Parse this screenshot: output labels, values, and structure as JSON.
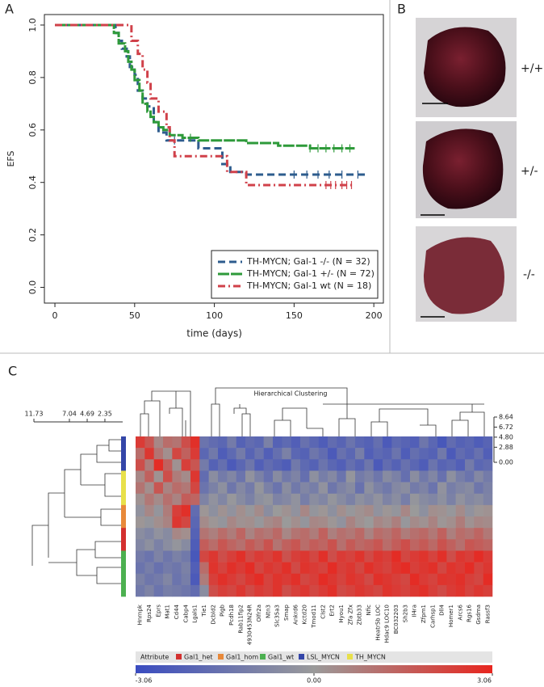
{
  "panel_labels": [
    "A",
    "B",
    "C"
  ],
  "panel_b": {
    "labels": [
      "+/+",
      "+/-",
      "-/-"
    ]
  },
  "chart_data": [
    {
      "type": "line",
      "step": true,
      "xlabel": "time (days)",
      "ylabel": "EFS",
      "xlim": [
        -6.6,
        206
      ],
      "ylim": [
        -0.06,
        1.04
      ],
      "xticks": [
        0,
        50,
        100,
        150,
        200
      ],
      "yticks": [
        {
          "value": 0,
          "label": "0.0"
        },
        {
          "value": 0.2,
          "label": "0.2"
        },
        {
          "value": 0.4,
          "label": "0.4"
        },
        {
          "value": 0.6,
          "label": "0.6"
        },
        {
          "value": 0.8,
          "label": "0.8"
        },
        {
          "value": 1,
          "label": "1.0"
        }
      ],
      "legend": "lower right",
      "series": [
        {
          "name": "TH-MYCN; Gal-1 -/- (N = 32)",
          "color": "#2e5c8e",
          "linestyle": "dashed",
          "x": [
            0,
            38,
            40,
            42,
            45,
            47,
            50,
            52,
            55,
            58,
            62,
            65,
            70,
            90,
            105,
            110,
            120,
            195
          ],
          "values": [
            1,
            0.97,
            0.94,
            0.91,
            0.88,
            0.84,
            0.81,
            0.75,
            0.72,
            0.69,
            0.63,
            0.59,
            0.56,
            0.53,
            0.47,
            0.44,
            0.43,
            0.43
          ],
          "censored": [
            75,
            150,
            158,
            165,
            172,
            180,
            190
          ]
        },
        {
          "name": "TH-MYCN; Gal-1 +/- (N = 72)",
          "color": "#2e9a3a",
          "linestyle": "solid",
          "x": [
            0,
            37,
            40,
            44,
            46,
            48,
            50,
            53,
            55,
            58,
            60,
            62,
            65,
            68,
            72,
            80,
            90,
            120,
            140,
            160,
            188
          ],
          "values": [
            1,
            0.97,
            0.93,
            0.9,
            0.86,
            0.83,
            0.79,
            0.75,
            0.7,
            0.67,
            0.65,
            0.63,
            0.61,
            0.6,
            0.58,
            0.57,
            0.56,
            0.55,
            0.54,
            0.53,
            0.53
          ],
          "censored": [
            85,
            160,
            165,
            170,
            175,
            180,
            185
          ]
        },
        {
          "name": "TH-MYCN; Gal-1 wt (N = 18)",
          "color": "#d0414a",
          "linestyle": "dashdot",
          "x": [
            0,
            48,
            52,
            55,
            58,
            60,
            65,
            70,
            72,
            75,
            108,
            120,
            187
          ],
          "values": [
            1,
            0.94,
            0.89,
            0.83,
            0.78,
            0.72,
            0.67,
            0.61,
            0.56,
            0.5,
            0.44,
            0.39,
            0.39
          ],
          "censored": [
            170,
            173,
            176,
            180,
            183,
            186
          ]
        }
      ]
    },
    {
      "type": "heatmap",
      "title": "Hierarchical Clustering",
      "columns": [
        "Hnrnpk",
        "Rps24",
        "Eprs",
        "Mat1",
        "Cd44",
        "Cabp4",
        "Lgals1",
        "Tie1",
        "Dcbld2",
        "Pigb",
        "Pcdh18",
        "Rab11fip2",
        "4930453N24R",
        "Olfr2a",
        "Ntn3",
        "Slc35a3",
        "Smap",
        "Ankrd6",
        "Kctd20",
        "Tmod11",
        "Clst2",
        "Ert2",
        "Hyou1",
        "Zfa Zfx",
        "Zbtb33",
        "Nfic",
        "Heatr5b LOC",
        "Hdac9 LOC10",
        "BC032203",
        "Sh2b3",
        "Il4ra",
        "Zfpm1",
        "Carhsp1",
        "Dll4",
        "Homer1",
        "Arcs6",
        "Rgs16",
        "Gsdma",
        "Rassf3"
      ],
      "rows": [
        [
          2.5,
          1.8,
          0.5,
          1.2,
          1.0,
          2.0,
          2.8,
          -1.5,
          -1.8,
          -2.0,
          -1.2,
          -2.2,
          -1.8,
          -2.0,
          -1.0,
          -2.2,
          -1.9,
          -2.3,
          -1.6,
          -2.0,
          -2.4,
          -1.8,
          -2.1,
          -1.5,
          -2.0,
          -2.2,
          -1.7,
          -2.5,
          -1.9,
          -2.1,
          -2.3,
          -1.4,
          -2.0,
          -2.6,
          -1.8,
          -2.2,
          -2.0,
          -2.4,
          -2.1
        ],
        [
          1.2,
          2.6,
          1.0,
          0.3,
          2.2,
          1.5,
          2.5,
          -2.0,
          -1.3,
          -2.4,
          -1.9,
          -1.2,
          -2.1,
          -1.5,
          -2.3,
          -1.7,
          -1.0,
          -2.0,
          -2.2,
          -1.4,
          -1.8,
          -2.5,
          -1.6,
          -2.0,
          -1.1,
          -2.3,
          -1.9,
          -2.1,
          -1.5,
          -2.4,
          -1.7,
          -2.0,
          -2.2,
          -1.3,
          -2.5,
          -1.8,
          -2.1,
          -1.6,
          -2.3
        ],
        [
          2.0,
          0.8,
          2.9,
          1.5,
          0.2,
          2.4,
          1.8,
          -1.2,
          -2.2,
          -1.7,
          -2.5,
          -2.0,
          -1.4,
          -2.3,
          -1.8,
          -2.1,
          -2.4,
          -1.3,
          -1.9,
          -2.2,
          -1.5,
          -2.0,
          -2.3,
          -1.7,
          -2.1,
          -1.4,
          -2.5,
          -1.8,
          -2.2,
          -1.6,
          -2.0,
          -2.4,
          -1.5,
          -2.1,
          -1.9,
          -2.3,
          -1.2,
          -2.0,
          -1.8
        ],
        [
          0.5,
          1.5,
          0.2,
          2.0,
          0.8,
          0.4,
          2.6,
          -1.8,
          -0.5,
          -1.2,
          -0.8,
          -1.5,
          -0.3,
          -1.0,
          -1.6,
          -0.6,
          -1.3,
          -0.9,
          -1.7,
          -0.4,
          -1.1,
          -0.7,
          -1.5,
          -0.2,
          -1.2,
          -0.9,
          -1.4,
          -0.6,
          -1.0,
          -1.7,
          -0.5,
          -1.3,
          -0.8,
          -1.6,
          -0.4,
          -1.1,
          -1.5,
          -0.7,
          -1.2
        ],
        [
          1.0,
          0.3,
          1.8,
          0.6,
          1.2,
          0.9,
          2.2,
          -1.5,
          -1.0,
          -0.4,
          -1.4,
          -0.7,
          -1.2,
          -0.2,
          -1.0,
          -1.5,
          -0.5,
          -1.3,
          -0.8,
          -1.1,
          -0.3,
          -1.4,
          -0.9,
          -0.6,
          -1.6,
          -0.4,
          -1.0,
          -1.3,
          -0.7,
          -0.5,
          -1.2,
          -0.9,
          -1.5,
          -0.3,
          -1.1,
          -0.8,
          -0.6,
          -1.4,
          -1.0
        ],
        [
          0.2,
          0.9,
          0.4,
          1.1,
          0.6,
          1.6,
          1.4,
          -0.9,
          -0.3,
          -0.8,
          -0.1,
          -0.6,
          -1.0,
          -0.4,
          -0.2,
          -0.9,
          -0.7,
          -0.3,
          -1.1,
          -0.5,
          -0.8,
          -0.2,
          -0.6,
          -1.0,
          -0.4,
          -0.7,
          -0.3,
          -0.9,
          -0.5,
          -1.1,
          -0.2,
          -0.6,
          -0.8,
          -0.4,
          -1.0,
          -0.3,
          -0.7,
          -0.5,
          -0.9
        ],
        [
          -0.3,
          0.5,
          -0.2,
          0.8,
          2.4,
          2.8,
          -1.8,
          0.1,
          -0.4,
          0.2,
          -0.3,
          0.3,
          -0.1,
          0.4,
          -0.5,
          0.0,
          0.2,
          -0.3,
          0.5,
          -0.2,
          0.1,
          -0.4,
          0.3,
          -0.1,
          0.2,
          0.4,
          -0.3,
          0.1,
          -0.2,
          0.5,
          0.0,
          -0.4,
          0.3,
          0.2,
          -0.1,
          0.4,
          -0.3,
          0.1,
          0.2
        ],
        [
          0.1,
          -0.2,
          0.3,
          0.6,
          2.6,
          2.2,
          -2.0,
          0.4,
          0.1,
          -0.2,
          0.5,
          0.2,
          0.3,
          -0.1,
          0.4,
          0.6,
          0.0,
          0.3,
          -0.2,
          0.5,
          0.4,
          0.1,
          -0.3,
          0.6,
          0.2,
          0.0,
          0.5,
          0.3,
          0.7,
          -0.1,
          0.4,
          0.2,
          0.6,
          0.1,
          0.3,
          0.8,
          0.2,
          0.5,
          0.4
        ],
        [
          -0.5,
          -0.8,
          -0.3,
          -0.6,
          0.5,
          0.3,
          -2.2,
          1.0,
          0.7,
          1.2,
          0.8,
          1.4,
          0.6,
          1.1,
          0.9,
          1.3,
          0.5,
          1.0,
          1.2,
          0.8,
          1.5,
          0.7,
          1.1,
          0.9,
          1.3,
          0.6,
          1.2,
          1.0,
          1.4,
          0.8,
          1.1,
          1.3,
          0.9,
          1.5,
          0.7,
          1.2,
          1.0,
          1.4,
          0.9
        ],
        [
          -0.8,
          -0.4,
          -1.0,
          -0.5,
          -0.2,
          -0.6,
          -2.4,
          1.6,
          1.2,
          1.8,
          1.4,
          1.1,
          1.7,
          1.3,
          1.9,
          1.0,
          1.5,
          1.8,
          1.2,
          1.6,
          1.4,
          1.9,
          1.1,
          1.7,
          1.3,
          1.5,
          1.8,
          1.2,
          1.6,
          2.0,
          1.4,
          1.7,
          1.3,
          1.9,
          1.5,
          1.1,
          1.8,
          1.6,
          1.4
        ],
        [
          -1.2,
          -1.5,
          -0.9,
          -1.4,
          -1.0,
          -1.3,
          -2.6,
          2.2,
          2.6,
          2.0,
          2.4,
          2.8,
          2.1,
          2.5,
          2.3,
          2.7,
          1.9,
          2.4,
          2.6,
          2.2,
          2.8,
          2.0,
          2.5,
          2.3,
          2.7,
          2.1,
          2.6,
          2.4,
          2.9,
          2.2,
          2.5,
          2.7,
          2.3,
          2.8,
          2.0,
          2.6,
          2.4,
          2.9,
          2.5
        ],
        [
          -1.5,
          -1.1,
          -1.6,
          -1.2,
          -1.4,
          -1.0,
          -2.3,
          1.2,
          2.7,
          2.3,
          2.8,
          2.5,
          2.9,
          2.2,
          2.6,
          2.4,
          2.8,
          2.1,
          2.7,
          2.5,
          2.3,
          2.9,
          2.4,
          2.6,
          2.2,
          2.8,
          2.5,
          2.3,
          2.7,
          2.9,
          2.4,
          2.6,
          2.8,
          2.2,
          2.7,
          2.5,
          2.9,
          2.3,
          2.6
        ],
        [
          -1.0,
          -1.4,
          -1.2,
          -0.8,
          -1.5,
          -1.1,
          -2.5,
          0.8,
          2.4,
          2.8,
          2.5,
          2.2,
          2.6,
          2.9,
          2.3,
          2.7,
          2.5,
          2.8,
          2.2,
          2.4,
          2.9,
          2.6,
          2.3,
          2.7,
          2.5,
          2.1,
          2.8,
          2.6,
          2.4,
          2.2,
          2.9,
          2.5,
          2.3,
          2.7,
          2.6,
          2.8,
          2.4,
          2.2,
          2.9
        ],
        [
          -1.3,
          -0.9,
          -1.5,
          -1.1,
          -1.2,
          -1.4,
          -1.8,
          -0.5,
          2.0,
          2.4,
          2.2,
          2.6,
          2.1,
          2.5,
          2.3,
          2.7,
          2.0,
          2.4,
          2.6,
          2.2,
          2.5,
          2.8,
          2.1,
          2.3,
          2.6,
          2.4,
          2.2,
          2.7,
          2.5,
          2.3,
          2.6,
          2.8,
          2.4,
          2.1,
          2.5,
          2.7,
          2.3,
          2.6,
          2.4
        ]
      ],
      "row_attributes": [
        "LSL_MYCN",
        "LSL_MYCN",
        "LSL_MYCN",
        "TH_MYCN",
        "TH_MYCN",
        "TH_MYCN",
        "Gal1_hom",
        "Gal1_hom",
        "Gal1_het",
        "Gal1_het",
        "Gal1_wt",
        "Gal1_wt",
        "Gal1_wt",
        "Gal1_wt"
      ],
      "legend": {
        "title": "Attribute",
        "items": [
          {
            "name": "Gal1_het",
            "color": "#d3302f"
          },
          {
            "name": "Gal1_hom",
            "color": "#e8893a"
          },
          {
            "name": "Gal1_wt",
            "color": "#4cb050"
          },
          {
            "name": "LSL_MYCN",
            "color": "#3446a8"
          },
          {
            "name": "TH_MYCN",
            "color": "#e8e04a"
          }
        ]
      },
      "color_scale": {
        "colors": [
          "#3a4cc0",
          "#9a9a9a",
          "#e8261f"
        ],
        "lim": [
          -3.06,
          3.06
        ],
        "ticks": [
          -3.06,
          {
            "value": 0,
            "label": "0.00"
          },
          3.06
        ]
      },
      "column_dendrogram_lim": [
        0,
        8.64
      ],
      "column_dendrogram_ticks": [
        8.64,
        6.72,
        {
          "value": 4.8,
          "label": "4.80"
        },
        2.88,
        {
          "value": 0,
          "label": "0.00"
        }
      ],
      "row_dendrogram_lim": [
        0,
        11.73
      ],
      "row_dendrogram_ticks": [
        11.73,
        7.04,
        4.69,
        2.35
      ]
    }
  ]
}
